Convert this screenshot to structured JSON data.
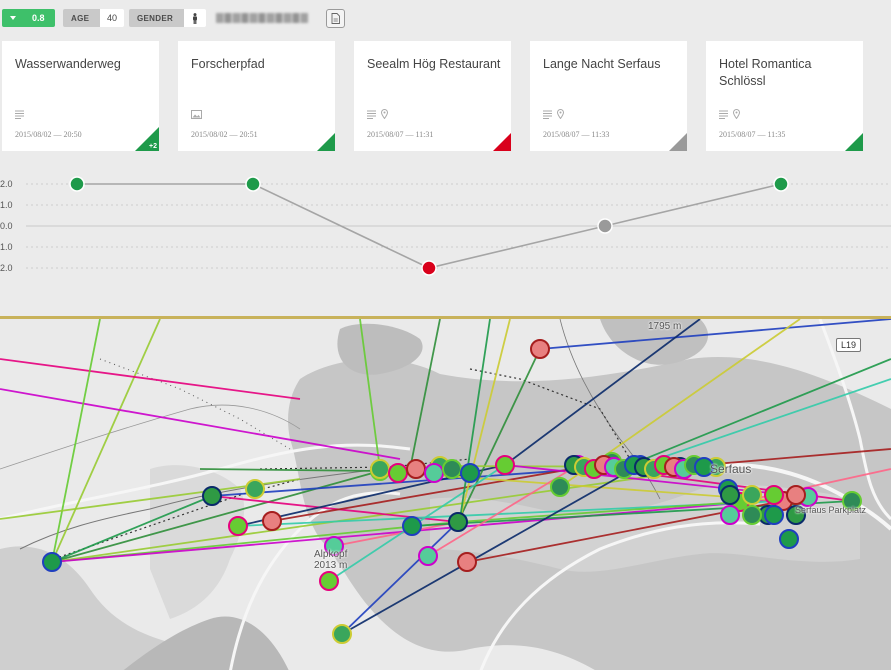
{
  "topbar": {
    "score": "0.8",
    "age_label": "AGE",
    "age_value": "40",
    "gender_label": "GENDER",
    "gender_icon": "person-icon",
    "user_name": "",
    "doc_icon": "document-icon"
  },
  "cards": [
    {
      "title": "Wasserwanderweg",
      "icons": [
        "text-icon"
      ],
      "date": "2015/08/02 — 20:50",
      "corner_color": "#1e9a4a",
      "corner_label": "+2"
    },
    {
      "title": "Forscherpfad",
      "icons": [
        "image-icon"
      ],
      "date": "2015/08/02 — 20:51",
      "corner_color": "#1e9a4a",
      "corner_label": ""
    },
    {
      "title": "Seealm Hög Restaurant",
      "icons": [
        "text-icon",
        "pin-icon"
      ],
      "date": "2015/08/07 — 11:31",
      "corner_color": "#d9001b",
      "corner_label": ""
    },
    {
      "title": "Lange Nacht Serfaus",
      "icons": [
        "text-icon",
        "pin-icon"
      ],
      "date": "2015/08/07 — 11:33",
      "corner_color": "#9a9a9a",
      "corner_label": ""
    },
    {
      "title": "Hotel Romantica Schlössl",
      "icons": [
        "text-icon",
        "pin-icon"
      ],
      "date": "2015/08/07 — 11:35",
      "corner_color": "#1e9a4a",
      "corner_label": ""
    }
  ],
  "chart_data": {
    "type": "line",
    "y_ticks": [
      "2.0",
      "1.0",
      "0.0",
      "1.0",
      "2.0"
    ],
    "ylim": [
      -2,
      2
    ],
    "grid": true,
    "points": [
      {
        "card": 0,
        "value": 2,
        "color": "#1e9a4a"
      },
      {
        "card": 1,
        "value": 2,
        "color": "#1e9a4a"
      },
      {
        "card": 2,
        "value": -2,
        "color": "#d9001b"
      },
      {
        "card": 3,
        "value": 0,
        "color": "#9a9a9a"
      },
      {
        "card": 4,
        "value": 2,
        "color": "#1e9a4a"
      }
    ]
  },
  "map": {
    "labels": {
      "peak_name": "Alpkopf",
      "peak_elevation": "2013 m",
      "top_elevation": "1795 m",
      "town": "Serfaus",
      "parking": "Serfaus Parkplatz",
      "road": "L19"
    },
    "route_colors": [
      "#1e9a4a",
      "#2f8f3a",
      "#66cc33",
      "#99cc33",
      "#cc00cc",
      "#e6007e",
      "#1f3fbf",
      "#0a2a6a",
      "#33ccaa",
      "#a61e1e",
      "#ff6688",
      "#cccc33"
    ]
  }
}
